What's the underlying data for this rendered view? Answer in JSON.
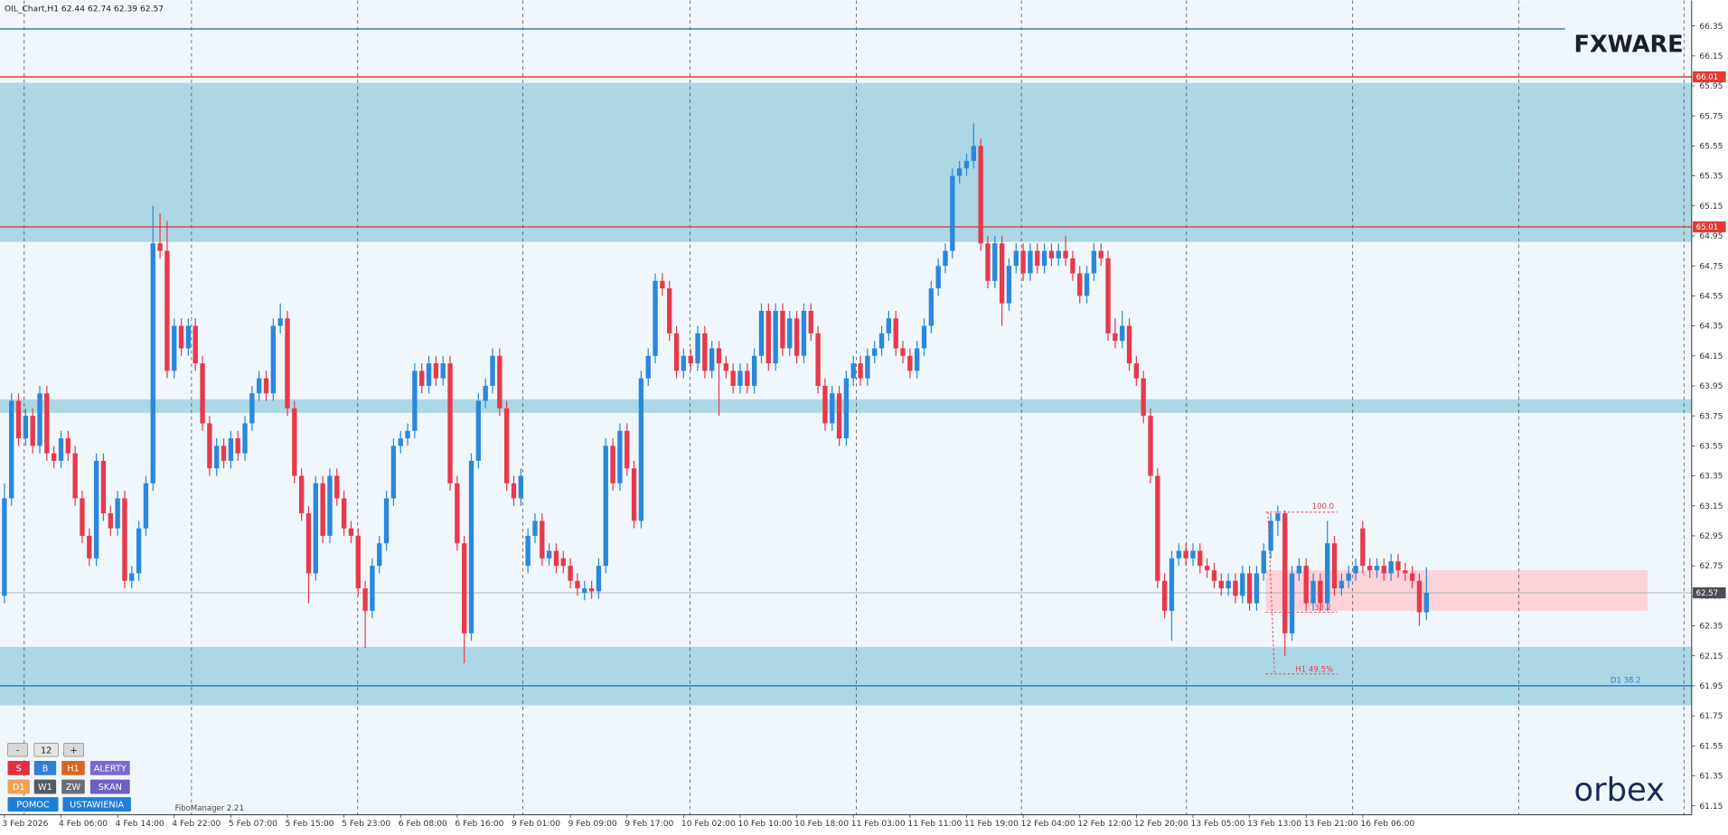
{
  "chart_data": {
    "type": "candlestick",
    "title": "OIL_Chart,H1  62.44 62.74 62.39 62.57",
    "up_color": "#2a88dc",
    "down_color": "#e63a4c",
    "grid": false,
    "ylim": [
      61.09,
      66.52
    ],
    "yticks": [
      61.15,
      61.35,
      61.55,
      61.75,
      61.95,
      62.15,
      62.35,
      62.55,
      62.75,
      62.95,
      63.15,
      63.35,
      63.55,
      63.75,
      63.95,
      64.15,
      64.35,
      64.55,
      64.75,
      64.95,
      65.15,
      65.35,
      65.55,
      65.75,
      65.95,
      66.15,
      66.35
    ],
    "categories": [
      "3 Feb 2026",
      null,
      null,
      null,
      null,
      null,
      null,
      null,
      "4 Feb 06:00",
      null,
      null,
      null,
      null,
      null,
      null,
      null,
      "4 Feb 14:00",
      null,
      null,
      null,
      null,
      null,
      null,
      null,
      "4 Feb 22:00",
      null,
      null,
      null,
      null,
      null,
      null,
      null,
      "5 Feb 07:00",
      null,
      null,
      null,
      null,
      null,
      null,
      null,
      "5 Feb 15:00",
      null,
      null,
      null,
      null,
      null,
      null,
      null,
      "5 Feb 23:00",
      null,
      null,
      null,
      null,
      null,
      null,
      null,
      "6 Feb 08:00",
      null,
      null,
      null,
      null,
      null,
      null,
      null,
      "6 Feb 16:00",
      null,
      null,
      null,
      null,
      null,
      null,
      null,
      "9 Feb 01:00",
      null,
      null,
      null,
      null,
      null,
      null,
      null,
      "9 Feb 09:00",
      null,
      null,
      null,
      null,
      null,
      null,
      null,
      "9 Feb 17:00",
      null,
      null,
      null,
      null,
      null,
      null,
      null,
      "10 Feb 02:00",
      null,
      null,
      null,
      null,
      null,
      null,
      null,
      "10 Feb 10:00",
      null,
      null,
      null,
      null,
      null,
      null,
      null,
      "10 Feb 18:00",
      null,
      null,
      null,
      null,
      null,
      null,
      null,
      "11 Feb 03:00",
      null,
      null,
      null,
      null,
      null,
      null,
      null,
      "11 Feb 11:00",
      null,
      null,
      null,
      null,
      null,
      null,
      null,
      "11 Feb 19:00",
      null,
      null,
      null,
      null,
      null,
      null,
      null,
      "12 Feb 04:00",
      null,
      null,
      null,
      null,
      null,
      null,
      null,
      "12 Feb 12:00",
      null,
      null,
      null,
      null,
      null,
      null,
      null,
      "12 Feb 20:00",
      null,
      null,
      null,
      null,
      null,
      null,
      null,
      "13 Feb 05:00",
      null,
      null,
      null,
      null,
      null,
      null,
      null,
      "13 Feb 13:00",
      null,
      null,
      null,
      null,
      null,
      null,
      null,
      "13 Feb 21:00",
      null,
      null,
      null,
      null,
      null,
      null,
      null,
      "16 Feb 06:00",
      null,
      null,
      null,
      null,
      null,
      null,
      null,
      null,
      null
    ],
    "ohlc": [
      [
        62.55,
        63.3,
        62.5,
        63.2
      ],
      [
        63.2,
        63.9,
        63.15,
        63.85
      ],
      [
        63.85,
        63.9,
        63.55,
        63.6
      ],
      [
        63.6,
        63.8,
        63.55,
        63.75
      ],
      [
        63.75,
        63.8,
        63.5,
        63.55
      ],
      [
        63.55,
        63.95,
        63.5,
        63.9
      ],
      [
        63.9,
        63.95,
        63.45,
        63.5
      ],
      [
        63.5,
        63.55,
        63.4,
        63.45
      ],
      [
        63.45,
        63.65,
        63.4,
        63.6
      ],
      [
        63.6,
        63.65,
        63.45,
        63.5
      ],
      [
        63.5,
        63.55,
        63.15,
        63.2
      ],
      [
        63.2,
        63.25,
        62.9,
        62.95
      ],
      [
        62.95,
        63.0,
        62.75,
        62.8
      ],
      [
        62.8,
        63.5,
        62.75,
        63.45
      ],
      [
        63.45,
        63.5,
        63.05,
        63.1
      ],
      [
        63.1,
        63.15,
        62.95,
        63.0
      ],
      [
        63.0,
        63.25,
        62.95,
        63.2
      ],
      [
        63.2,
        63.25,
        62.6,
        62.65
      ],
      [
        62.65,
        62.75,
        62.6,
        62.7
      ],
      [
        62.7,
        63.05,
        62.65,
        63.0
      ],
      [
        63.0,
        63.35,
        62.95,
        63.3
      ],
      [
        63.3,
        65.15,
        63.25,
        64.9
      ],
      [
        64.9,
        65.1,
        64.8,
        64.85
      ],
      [
        64.85,
        65.05,
        64.0,
        64.05
      ],
      [
        64.05,
        64.4,
        64.0,
        64.35
      ],
      [
        64.35,
        64.4,
        64.15,
        64.2
      ],
      [
        64.2,
        64.4,
        64.15,
        64.35
      ],
      [
        64.35,
        64.4,
        64.05,
        64.1
      ],
      [
        64.1,
        64.15,
        63.65,
        63.7
      ],
      [
        63.7,
        63.75,
        63.35,
        63.4
      ],
      [
        63.4,
        63.6,
        63.35,
        63.55
      ],
      [
        63.55,
        63.6,
        63.4,
        63.45
      ],
      [
        63.45,
        63.65,
        63.4,
        63.6
      ],
      [
        63.6,
        63.65,
        63.45,
        63.5
      ],
      [
        63.5,
        63.75,
        63.45,
        63.7
      ],
      [
        63.7,
        63.95,
        63.65,
        63.9
      ],
      [
        63.9,
        64.05,
        63.85,
        64.0
      ],
      [
        64.0,
        64.05,
        63.85,
        63.9
      ],
      [
        63.9,
        64.4,
        63.85,
        64.35
      ],
      [
        64.35,
        64.5,
        64.3,
        64.4
      ],
      [
        64.4,
        64.45,
        63.75,
        63.8
      ],
      [
        63.8,
        63.85,
        63.3,
        63.35
      ],
      [
        63.35,
        63.4,
        63.05,
        63.1
      ],
      [
        63.1,
        63.15,
        62.5,
        62.7
      ],
      [
        62.7,
        63.35,
        62.65,
        63.3
      ],
      [
        63.3,
        63.35,
        62.9,
        62.95
      ],
      [
        62.95,
        63.4,
        62.9,
        63.35
      ],
      [
        63.35,
        63.4,
        63.15,
        63.2
      ],
      [
        63.2,
        63.25,
        62.95,
        63.0
      ],
      [
        63.0,
        63.05,
        62.9,
        62.95
      ],
      [
        62.95,
        63.0,
        62.55,
        62.6
      ],
      [
        62.6,
        62.65,
        62.2,
        62.45
      ],
      [
        62.45,
        62.8,
        62.4,
        62.75
      ],
      [
        62.75,
        62.95,
        62.7,
        62.9
      ],
      [
        62.9,
        63.25,
        62.85,
        63.2
      ],
      [
        63.2,
        63.6,
        63.15,
        63.55
      ],
      [
        63.55,
        63.65,
        63.5,
        63.6
      ],
      [
        63.6,
        63.7,
        63.55,
        63.65
      ],
      [
        63.65,
        64.1,
        63.6,
        64.05
      ],
      [
        64.05,
        64.1,
        63.9,
        63.95
      ],
      [
        63.95,
        64.15,
        63.9,
        64.1
      ],
      [
        64.1,
        64.15,
        63.95,
        64.0
      ],
      [
        64.0,
        64.15,
        63.95,
        64.1
      ],
      [
        64.1,
        64.15,
        63.25,
        63.3
      ],
      [
        63.3,
        63.35,
        62.85,
        62.9
      ],
      [
        62.9,
        62.95,
        62.1,
        62.3
      ],
      [
        62.3,
        63.5,
        62.25,
        63.45
      ],
      [
        63.45,
        63.9,
        63.4,
        63.85
      ],
      [
        63.85,
        64.0,
        63.8,
        63.95
      ],
      [
        63.95,
        64.2,
        63.9,
        64.15
      ],
      [
        64.15,
        64.2,
        63.75,
        63.8
      ],
      [
        63.8,
        63.85,
        63.25,
        63.3
      ],
      [
        63.3,
        63.35,
        63.15,
        63.2
      ],
      [
        63.2,
        63.4,
        63.15,
        63.35
      ],
      [
        62.75,
        63.0,
        62.7,
        62.95
      ],
      [
        62.95,
        63.1,
        62.9,
        63.05
      ],
      [
        63.05,
        63.1,
        62.75,
        62.8
      ],
      [
        62.8,
        62.9,
        62.75,
        62.85
      ],
      [
        62.85,
        62.9,
        62.7,
        62.75
      ],
      [
        62.8,
        62.85,
        62.7,
        62.75
      ],
      [
        62.75,
        62.8,
        62.6,
        62.65
      ],
      [
        62.65,
        62.7,
        62.55,
        62.6
      ],
      [
        62.57,
        62.65,
        62.52,
        62.6
      ],
      [
        62.6,
        62.65,
        62.53,
        62.58
      ],
      [
        62.58,
        62.8,
        62.53,
        62.75
      ],
      [
        62.75,
        63.6,
        62.7,
        63.55
      ],
      [
        63.55,
        63.6,
        63.25,
        63.3
      ],
      [
        63.3,
        63.7,
        63.25,
        63.65
      ],
      [
        63.65,
        63.7,
        63.35,
        63.4
      ],
      [
        63.4,
        63.45,
        63.0,
        63.05
      ],
      [
        63.05,
        64.05,
        63.0,
        64.0
      ],
      [
        64.0,
        64.2,
        63.95,
        64.15
      ],
      [
        64.15,
        64.7,
        64.1,
        64.65
      ],
      [
        64.65,
        64.7,
        64.55,
        64.6
      ],
      [
        64.6,
        64.65,
        64.25,
        64.3
      ],
      [
        64.3,
        64.35,
        64.0,
        64.05
      ],
      [
        64.05,
        64.2,
        64.0,
        64.15
      ],
      [
        64.15,
        64.2,
        64.05,
        64.1
      ],
      [
        64.1,
        64.35,
        64.05,
        64.3
      ],
      [
        64.3,
        64.35,
        64.0,
        64.05
      ],
      [
        64.05,
        64.25,
        64.0,
        64.2
      ],
      [
        64.2,
        64.25,
        63.75,
        64.1
      ],
      [
        64.1,
        64.15,
        64.0,
        64.05
      ],
      [
        64.05,
        64.1,
        63.9,
        63.95
      ],
      [
        63.95,
        64.1,
        63.9,
        64.05
      ],
      [
        64.05,
        64.1,
        63.9,
        63.95
      ],
      [
        63.95,
        64.2,
        63.9,
        64.15
      ],
      [
        64.15,
        64.5,
        64.1,
        64.45
      ],
      [
        64.45,
        64.5,
        64.05,
        64.1
      ],
      [
        64.1,
        64.5,
        64.05,
        64.45
      ],
      [
        64.45,
        64.5,
        64.15,
        64.2
      ],
      [
        64.2,
        64.45,
        64.15,
        64.4
      ],
      [
        64.4,
        64.45,
        64.1,
        64.15
      ],
      [
        64.15,
        64.5,
        64.1,
        64.45
      ],
      [
        64.45,
        64.5,
        64.25,
        64.3
      ],
      [
        64.3,
        64.35,
        63.9,
        63.95
      ],
      [
        63.95,
        64.0,
        63.65,
        63.7
      ],
      [
        63.7,
        63.95,
        63.65,
        63.9
      ],
      [
        63.9,
        63.95,
        63.55,
        63.6
      ],
      [
        63.6,
        64.05,
        63.55,
        64.0
      ],
      [
        64.0,
        64.15,
        63.95,
        64.1
      ],
      [
        64.1,
        64.15,
        63.95,
        64.0
      ],
      [
        64.0,
        64.2,
        63.95,
        64.15
      ],
      [
        64.15,
        64.25,
        64.1,
        64.2
      ],
      [
        64.2,
        64.35,
        64.15,
        64.3
      ],
      [
        64.3,
        64.45,
        64.25,
        64.4
      ],
      [
        64.4,
        64.45,
        64.15,
        64.2
      ],
      [
        64.2,
        64.25,
        64.1,
        64.15
      ],
      [
        64.15,
        64.2,
        64.0,
        64.05
      ],
      [
        64.05,
        64.25,
        64.0,
        64.2
      ],
      [
        64.2,
        64.4,
        64.15,
        64.35
      ],
      [
        64.35,
        64.65,
        64.3,
        64.6
      ],
      [
        64.6,
        64.8,
        64.55,
        64.75
      ],
      [
        64.75,
        64.9,
        64.7,
        64.85
      ],
      [
        64.85,
        65.4,
        64.8,
        65.35
      ],
      [
        65.35,
        65.45,
        65.3,
        65.4
      ],
      [
        65.4,
        65.5,
        65.35,
        65.45
      ],
      [
        65.45,
        65.7,
        65.4,
        65.55
      ],
      [
        65.55,
        65.6,
        64.85,
        64.9
      ],
      [
        64.9,
        64.95,
        64.6,
        64.65
      ],
      [
        64.65,
        64.95,
        64.6,
        64.9
      ],
      [
        64.9,
        64.95,
        64.35,
        64.5
      ],
      [
        64.5,
        64.8,
        64.45,
        64.75
      ],
      [
        64.75,
        64.9,
        64.7,
        64.85
      ],
      [
        64.85,
        64.9,
        64.65,
        64.7
      ],
      [
        64.7,
        64.9,
        64.65,
        64.85
      ],
      [
        64.85,
        64.9,
        64.7,
        64.75
      ],
      [
        64.75,
        64.9,
        64.7,
        64.85
      ],
      [
        64.85,
        64.9,
        64.75,
        64.8
      ],
      [
        64.8,
        64.9,
        64.75,
        64.85
      ],
      [
        64.85,
        64.95,
        64.75,
        64.8
      ],
      [
        64.8,
        64.85,
        64.65,
        64.7
      ],
      [
        64.7,
        64.75,
        64.5,
        64.55
      ],
      [
        64.55,
        64.75,
        64.5,
        64.7
      ],
      [
        64.7,
        64.9,
        64.65,
        64.85
      ],
      [
        64.85,
        64.9,
        64.75,
        64.8
      ],
      [
        64.8,
        64.85,
        64.25,
        64.3
      ],
      [
        64.3,
        64.4,
        64.2,
        64.25
      ],
      [
        64.25,
        64.45,
        64.2,
        64.35
      ],
      [
        64.35,
        64.4,
        64.05,
        64.1
      ],
      [
        64.1,
        64.15,
        63.95,
        64.0
      ],
      [
        64.0,
        64.05,
        63.7,
        63.75
      ],
      [
        63.75,
        63.8,
        63.3,
        63.35
      ],
      [
        63.35,
        63.4,
        62.6,
        62.65
      ],
      [
        62.65,
        62.7,
        62.4,
        62.45
      ],
      [
        62.45,
        62.85,
        62.25,
        62.8
      ],
      [
        62.8,
        62.9,
        62.75,
        62.85
      ],
      [
        62.85,
        62.9,
        62.75,
        62.8
      ],
      [
        62.8,
        62.9,
        62.75,
        62.85
      ],
      [
        62.85,
        62.9,
        62.7,
        62.75
      ],
      [
        62.75,
        62.8,
        62.67,
        62.72
      ],
      [
        62.72,
        62.77,
        62.6,
        62.65
      ],
      [
        62.65,
        62.7,
        62.55,
        62.6
      ],
      [
        62.6,
        62.7,
        62.55,
        62.65
      ],
      [
        62.65,
        62.7,
        62.5,
        62.55
      ],
      [
        62.55,
        62.75,
        62.5,
        62.7
      ],
      [
        62.7,
        62.75,
        62.45,
        62.5
      ],
      [
        62.5,
        62.75,
        62.45,
        62.7
      ],
      [
        62.7,
        62.9,
        62.65,
        62.85
      ],
      [
        62.85,
        63.1,
        62.8,
        63.05
      ],
      [
        63.05,
        63.15,
        62.95,
        63.1
      ],
      [
        63.1,
        63.12,
        62.15,
        62.3
      ],
      [
        62.3,
        62.75,
        62.25,
        62.7
      ],
      [
        62.7,
        62.8,
        62.65,
        62.75
      ],
      [
        62.75,
        62.8,
        62.45,
        62.5
      ],
      [
        62.5,
        62.7,
        62.45,
        62.65
      ],
      [
        62.65,
        62.7,
        62.45,
        62.5
      ],
      [
        62.5,
        63.05,
        62.45,
        62.9
      ],
      [
        62.9,
        62.95,
        62.55,
        62.6
      ],
      [
        62.6,
        62.7,
        62.55,
        62.65
      ],
      [
        62.65,
        62.75,
        62.6,
        62.7
      ],
      [
        62.7,
        62.8,
        62.65,
        62.75
      ],
      [
        63.0,
        63.05,
        62.7,
        62.75
      ],
      [
        62.75,
        62.8,
        62.67,
        62.72
      ],
      [
        62.72,
        62.8,
        62.67,
        62.75
      ],
      [
        62.75,
        62.8,
        62.65,
        62.7
      ],
      [
        62.7,
        62.83,
        62.65,
        62.78
      ],
      [
        62.78,
        62.83,
        62.67,
        62.72
      ],
      [
        62.72,
        62.77,
        62.65,
        62.7
      ],
      [
        62.7,
        62.75,
        62.6,
        62.65
      ],
      [
        62.65,
        62.7,
        62.35,
        62.44
      ],
      [
        62.44,
        62.74,
        62.39,
        62.57
      ]
    ],
    "zones": [
      {
        "from": 64.91,
        "to": 65.97,
        "color": "#acd8e6"
      },
      {
        "from": 63.77,
        "to": 63.86,
        "color": "#acd8e6"
      },
      {
        "from": 61.82,
        "to": 62.21,
        "color": "#acd8e6"
      },
      {
        "from": 62.45,
        "to": 62.72,
        "color": "#fbd3d9"
      }
    ],
    "levels": [
      {
        "value": 66.33,
        "color": "#2f7fc4",
        "tag": false
      },
      {
        "value": 66.01,
        "color": "#e53935",
        "tag": true
      },
      {
        "value": 65.01,
        "color": "#e53935",
        "tag": true
      },
      {
        "value": 61.95,
        "color": "#2f7fc4",
        "tag": false
      }
    ],
    "annotations": [
      {
        "text": "100.0",
        "color": "#e53950"
      },
      {
        "text": "38.2",
        "color": "#e53950"
      },
      {
        "text": "H1 49.5%",
        "color": "#e53950"
      },
      {
        "text": "D1 38.2",
        "color": "#2f7fc4"
      }
    ]
  },
  "ui": {
    "logo": "FXWARE",
    "brand": "orbex",
    "indicator": "FiboManager 2.21",
    "buttons": [
      "-",
      "12",
      "+",
      "S",
      "B",
      "H1",
      "ALERTY",
      "D1",
      "W1",
      "ZW",
      "SKAN",
      "POMOC",
      "USTAWIENIA"
    ]
  }
}
